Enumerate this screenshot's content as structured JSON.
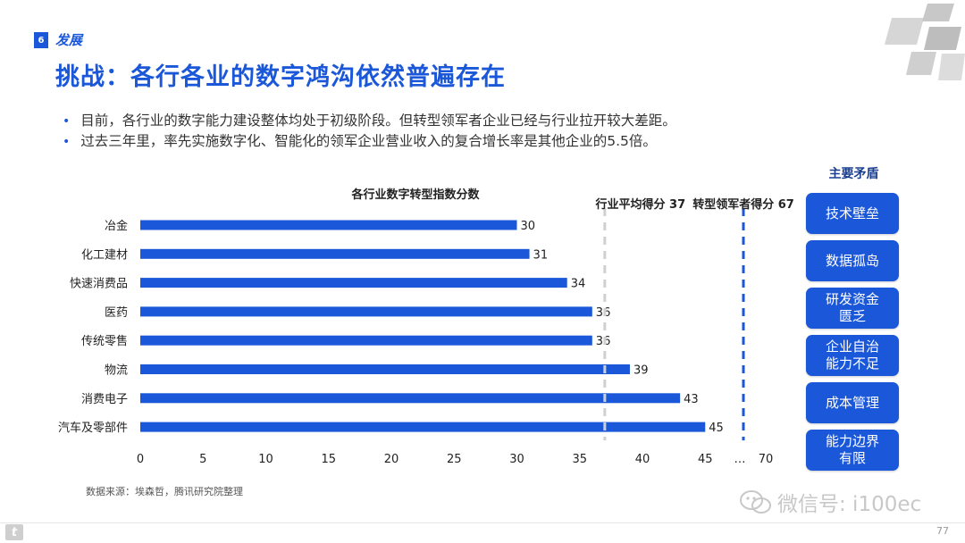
{
  "header": {
    "section_number": "6",
    "section_title": "发展",
    "title": "挑战：各行各业的数字鸿沟依然普遍存在"
  },
  "bullets": [
    "目前，各行业的数字能力建设整体均处于初级阶段。但转型领军者企业已经与行业拉开较大差距。",
    "过去三年里，率先实施数字化、智能化的领军企业营业收入的复合增长率是其他企业的5.5倍。"
  ],
  "chart_data": {
    "type": "bar",
    "orientation": "horizontal",
    "title": "各行业数字转型指数分数",
    "categories": [
      "冶金",
      "化工建材",
      "快速消费品",
      "医药",
      "传统零售",
      "物流",
      "消费电子",
      "汽车及零部件"
    ],
    "values": [
      30,
      31,
      34,
      36,
      36,
      39,
      43,
      45
    ],
    "x_ticks": [
      "0",
      "5",
      "10",
      "15",
      "20",
      "25",
      "30",
      "35",
      "40",
      "45",
      "…",
      "70"
    ],
    "xlim": [
      0,
      70
    ],
    "axis_break": true,
    "reference_lines": [
      {
        "label": "行业平均得分 37",
        "value": 37,
        "style": "dashed",
        "color": "#d0d0d0"
      },
      {
        "label": "转型领军者得分 67",
        "value": 67,
        "style": "dashed",
        "color": "#1b57d9"
      }
    ],
    "bar_color": "#1b57d9",
    "grid": false
  },
  "sidebar": {
    "title": "主要矛盾",
    "items": [
      "技术壁垒",
      "数据孤岛",
      "研发资金\n匮乏",
      "企业自治\n能力不足",
      "成本管理",
      "能力边界\n有限"
    ]
  },
  "source": "数据来源：埃森哲，腾讯研究院整理",
  "watermark": "微信号: i100ec",
  "page_number": "77"
}
